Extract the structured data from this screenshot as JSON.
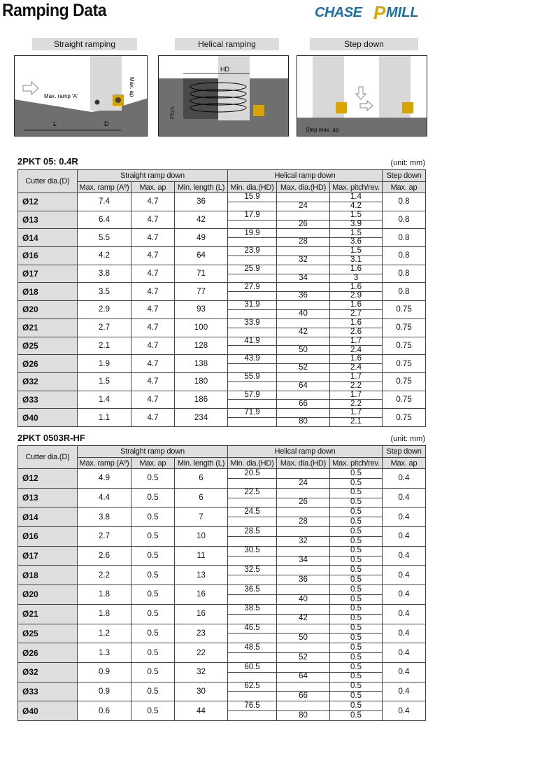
{
  "header": {
    "title": "Ramping Data",
    "logo_text": "CHASEPMILL"
  },
  "diagrams": [
    {
      "caption": "Straight ramping",
      "labels": [
        "Max. ramp 'A'",
        "Max. ap",
        "L",
        "D"
      ]
    },
    {
      "caption": "Helical ramping",
      "labels": [
        "HD",
        "Pitch"
      ]
    },
    {
      "caption": "Step down",
      "labels": [
        "Step max. ap"
      ]
    }
  ],
  "columns": {
    "cutter": "Cutter dia.(D)",
    "group_straight": "Straight ramp down",
    "group_helical": "Helical ramp down",
    "group_step": "Step down",
    "max_ramp": "Max. ramp (Aº)",
    "max_ap": "Max. ap",
    "min_length": "Min. length (L)",
    "min_dia": "Min. dia.(HD)",
    "max_dia": "Max. dia.(HD)",
    "max_pitch": "Max. pitch/rev.",
    "step_max_ap": "Max. ap"
  },
  "tables": [
    {
      "name": "2PKT 05: 0.4R",
      "unit": "(unit: mm)",
      "rows": [
        [
          "Ø12",
          "7.4",
          "4.7",
          "36",
          "15.9",
          "24",
          "1.4",
          "4.2",
          "0.8"
        ],
        [
          "Ø13",
          "6.4",
          "4.7",
          "42",
          "17.9",
          "26",
          "1.5",
          "3.9",
          "0.8"
        ],
        [
          "Ø14",
          "5.5",
          "4.7",
          "49",
          "19.9",
          "28",
          "1.5",
          "3.6",
          "0.8"
        ],
        [
          "Ø16",
          "4.2",
          "4.7",
          "64",
          "23.9",
          "32",
          "1.5",
          "3.1",
          "0.8"
        ],
        [
          "Ø17",
          "3.8",
          "4.7",
          "71",
          "25.9",
          "34",
          "1.6",
          "3",
          "0.8"
        ],
        [
          "Ø18",
          "3.5",
          "4.7",
          "77",
          "27.9",
          "36",
          "1.6",
          "2.9",
          "0.8"
        ],
        [
          "Ø20",
          "2.9",
          "4.7",
          "93",
          "31.9",
          "40",
          "1.6",
          "2.7",
          "0.75"
        ],
        [
          "Ø21",
          "2.7",
          "4.7",
          "100",
          "33.9",
          "42",
          "1.6",
          "2.6",
          "0.75"
        ],
        [
          "Ø25",
          "2.1",
          "4.7",
          "128",
          "41.9",
          "50",
          "1.7",
          "2.4",
          "0.75"
        ],
        [
          "Ø26",
          "1.9",
          "4.7",
          "138",
          "43.9",
          "52",
          "1.6",
          "2.4",
          "0.75"
        ],
        [
          "Ø32",
          "1.5",
          "4.7",
          "180",
          "55.9",
          "64",
          "1.7",
          "2.2",
          "0.75"
        ],
        [
          "Ø33",
          "1.4",
          "4.7",
          "186",
          "57.9",
          "66",
          "1.7",
          "2.2",
          "0.75"
        ],
        [
          "Ø40",
          "1.1",
          "4.7",
          "234",
          "71.9",
          "80",
          "1.7",
          "2.1",
          "0.75"
        ]
      ]
    },
    {
      "name": "2PKT 0503R-HF",
      "unit": "(unit: mm)",
      "rows": [
        [
          "Ø12",
          "4.9",
          "0.5",
          "6",
          "20.5",
          "24",
          "0.5",
          "0.5",
          "0.4"
        ],
        [
          "Ø13",
          "4.4",
          "0.5",
          "6",
          "22.5",
          "26",
          "0.5",
          "0.5",
          "0.4"
        ],
        [
          "Ø14",
          "3.8",
          "0.5",
          "7",
          "24.5",
          "28",
          "0.5",
          "0.5",
          "0.4"
        ],
        [
          "Ø16",
          "2.7",
          "0.5",
          "10",
          "28.5",
          "32",
          "0.5",
          "0.5",
          "0.4"
        ],
        [
          "Ø17",
          "2.6",
          "0.5",
          "11",
          "30.5",
          "34",
          "0.5",
          "0.5",
          "0.4"
        ],
        [
          "Ø18",
          "2.2",
          "0.5",
          "13",
          "32.5",
          "36",
          "0.5",
          "0.5",
          "0.4"
        ],
        [
          "Ø20",
          "1.8",
          "0.5",
          "16",
          "36.5",
          "40",
          "0.5",
          "0.5",
          "0.4"
        ],
        [
          "Ø21",
          "1.8",
          "0.5",
          "16",
          "38.5",
          "42",
          "0.5",
          "0.5",
          "0.4"
        ],
        [
          "Ø25",
          "1.2",
          "0.5",
          "23",
          "46.5",
          "50",
          "0.5",
          "0.5",
          "0.4"
        ],
        [
          "Ø26",
          "1.3",
          "0.5",
          "22",
          "48.5",
          "52",
          "0.5",
          "0.5",
          "0.4"
        ],
        [
          "Ø32",
          "0.9",
          "0.5",
          "32",
          "60.5",
          "64",
          "0.5",
          "0.5",
          "0.4"
        ],
        [
          "Ø33",
          "0.9",
          "0.5",
          "30",
          "62.5",
          "66",
          "0.5",
          "0.5",
          "0.4"
        ],
        [
          "Ø40",
          "0.6",
          "0.5",
          "44",
          "76.5",
          "80",
          "0.5",
          "0.5",
          "0.4"
        ]
      ]
    }
  ],
  "colors": {
    "header_bg": "#dedede",
    "ground": "#6f6f6f",
    "insert": "#d9a400",
    "logo_blue": "#1b6fa8",
    "logo_gold": "#d9a400"
  }
}
